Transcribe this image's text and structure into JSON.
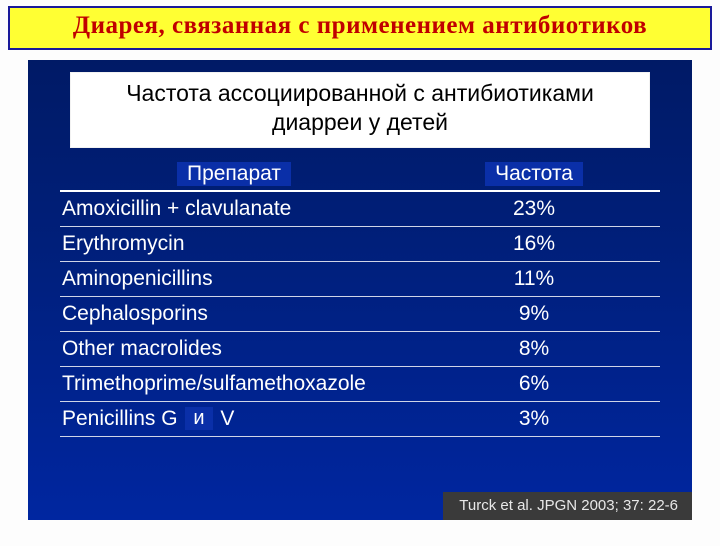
{
  "title": "Диарея, связанная с применением антибиотиков",
  "subtitle": "Частота ассоциированной с антибиотиками диарреи у детей",
  "headers": {
    "drug": "Препарат",
    "freq": "Частота"
  },
  "patch_and": "и",
  "rows": [
    {
      "drug_pre": "Amoxicillin + clavulanate",
      "drug_post": "",
      "has_patch": false,
      "freq": "23%"
    },
    {
      "drug_pre": "Erythromycin",
      "drug_post": "",
      "has_patch": false,
      "freq": "16%"
    },
    {
      "drug_pre": "Aminopenicillins",
      "drug_post": "",
      "has_patch": false,
      "freq": "11%"
    },
    {
      "drug_pre": "Cephalosporins",
      "drug_post": "",
      "has_patch": false,
      "freq": "9%"
    },
    {
      "drug_pre": "Other macrolides",
      "drug_post": "",
      "has_patch": false,
      "freq": "8%"
    },
    {
      "drug_pre": "Trimethoprime/sulfamethoxazole",
      "drug_post": "",
      "has_patch": false,
      "freq": "6%"
    },
    {
      "drug_pre": "Penicillins G",
      "drug_post": " V",
      "has_patch": true,
      "freq": "3%"
    }
  ],
  "citation": "Turck et al. JPGN 2003; 37: 22-6",
  "colors": {
    "title_bg": "#ffff33",
    "title_border": "#1a1a9a",
    "title_text": "#c00000",
    "slide_bg_top": "#001a66",
    "slide_bg_bottom": "#0026a0",
    "overlay_bg": "#0a2fa8",
    "row_border": "#cfd4e6",
    "citation_bg": "#3a3a3a",
    "citation_text": "#e8e8e8"
  },
  "fonts": {
    "title": {
      "family": "Comic Sans MS",
      "size_pt": 19,
      "weight": "bold"
    },
    "subtitle": {
      "size_pt": 17
    },
    "header": {
      "size_pt": 16
    },
    "cell": {
      "size_pt": 16
    },
    "citation": {
      "size_pt": 11
    }
  }
}
